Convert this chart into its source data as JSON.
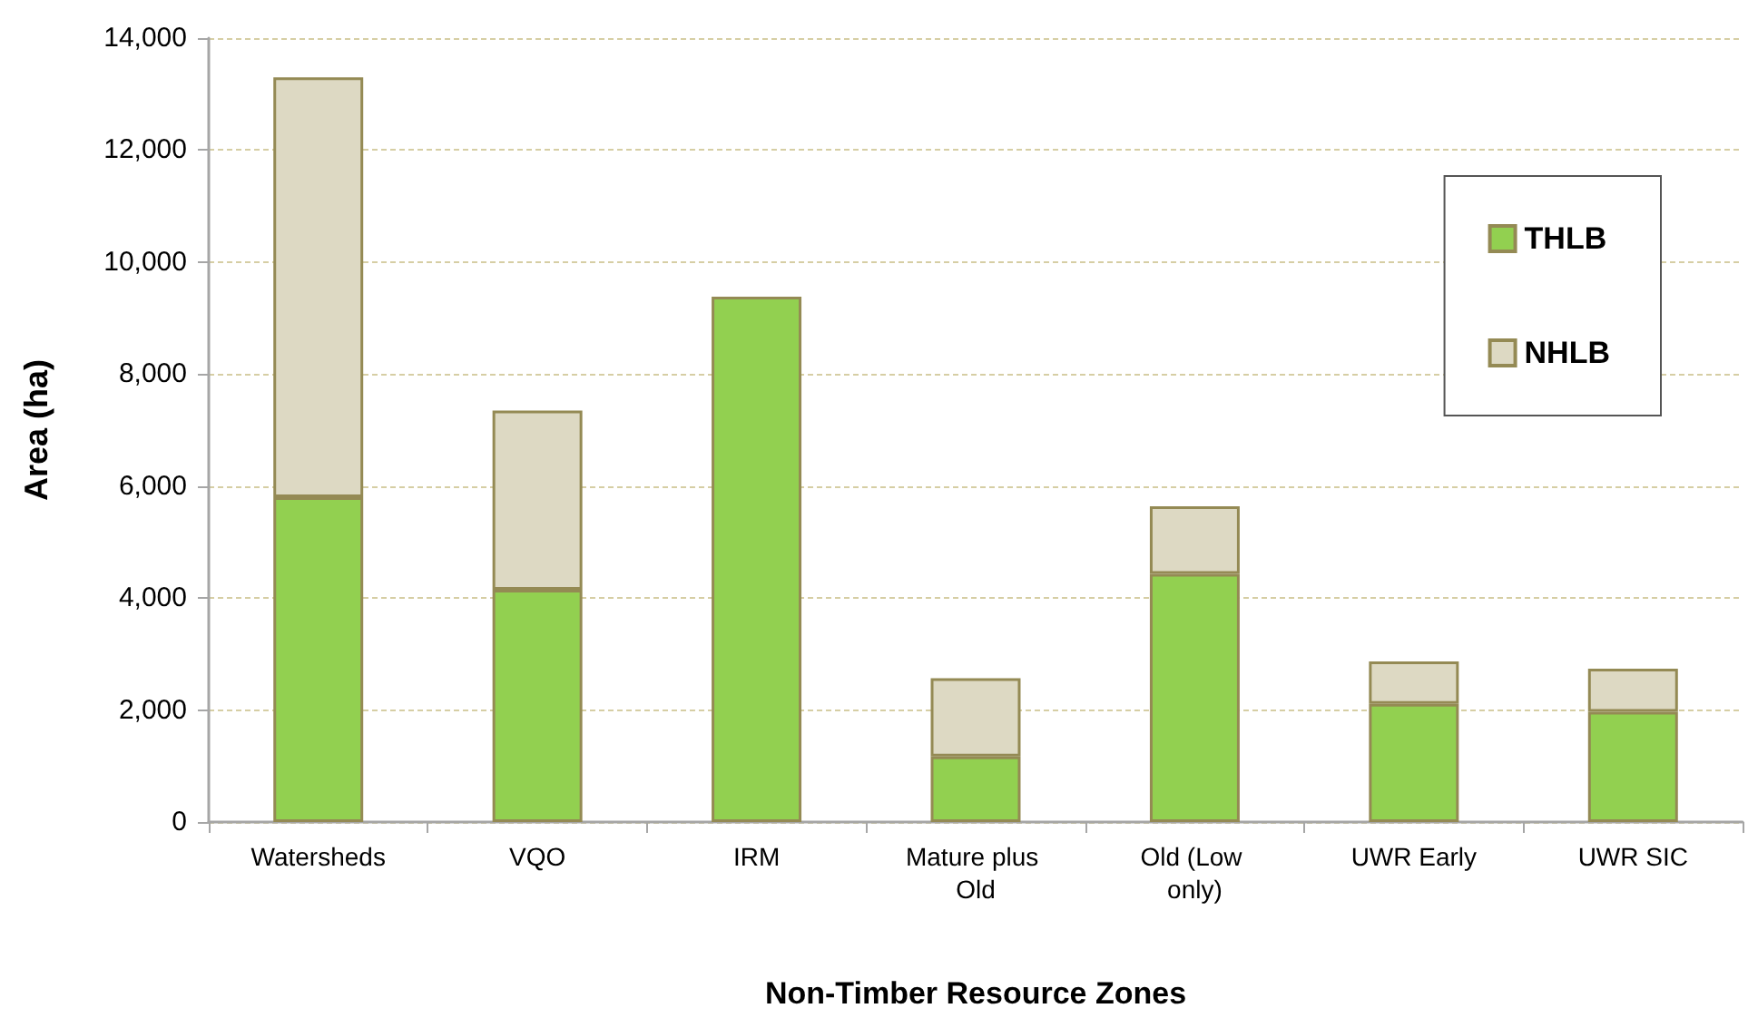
{
  "chart_data": {
    "type": "bar",
    "stacked": true,
    "xlabel": "Non-Timber Resource Zones",
    "ylabel": "Area (ha)",
    "categories": [
      "Watersheds",
      "VQO",
      "IRM",
      "Mature plus Old",
      "Old (Low only)",
      "UWR Early",
      "UWR SIC"
    ],
    "series": [
      {
        "name": "THLB",
        "color": "#92d050",
        "values": [
          5800,
          4150,
          9380,
          1170,
          4430,
          2110,
          1970
        ]
      },
      {
        "name": "NHLB",
        "color": "#ddd9c3",
        "values": [
          7500,
          3200,
          null,
          1400,
          1210,
          760,
          770
        ]
      }
    ],
    "ylim": [
      0,
      14000
    ],
    "yticks": [
      {
        "value": 0,
        "label": "0"
      },
      {
        "value": 2000,
        "label": "2,000"
      },
      {
        "value": 4000,
        "label": "4,000"
      },
      {
        "value": 6000,
        "label": "6,000"
      },
      {
        "value": 8000,
        "label": "8,000"
      },
      {
        "value": 10000,
        "label": "10,000"
      },
      {
        "value": 12000,
        "label": "12,000"
      },
      {
        "value": 14000,
        "label": "14,000"
      }
    ],
    "grid": "y",
    "legend": "top right"
  }
}
